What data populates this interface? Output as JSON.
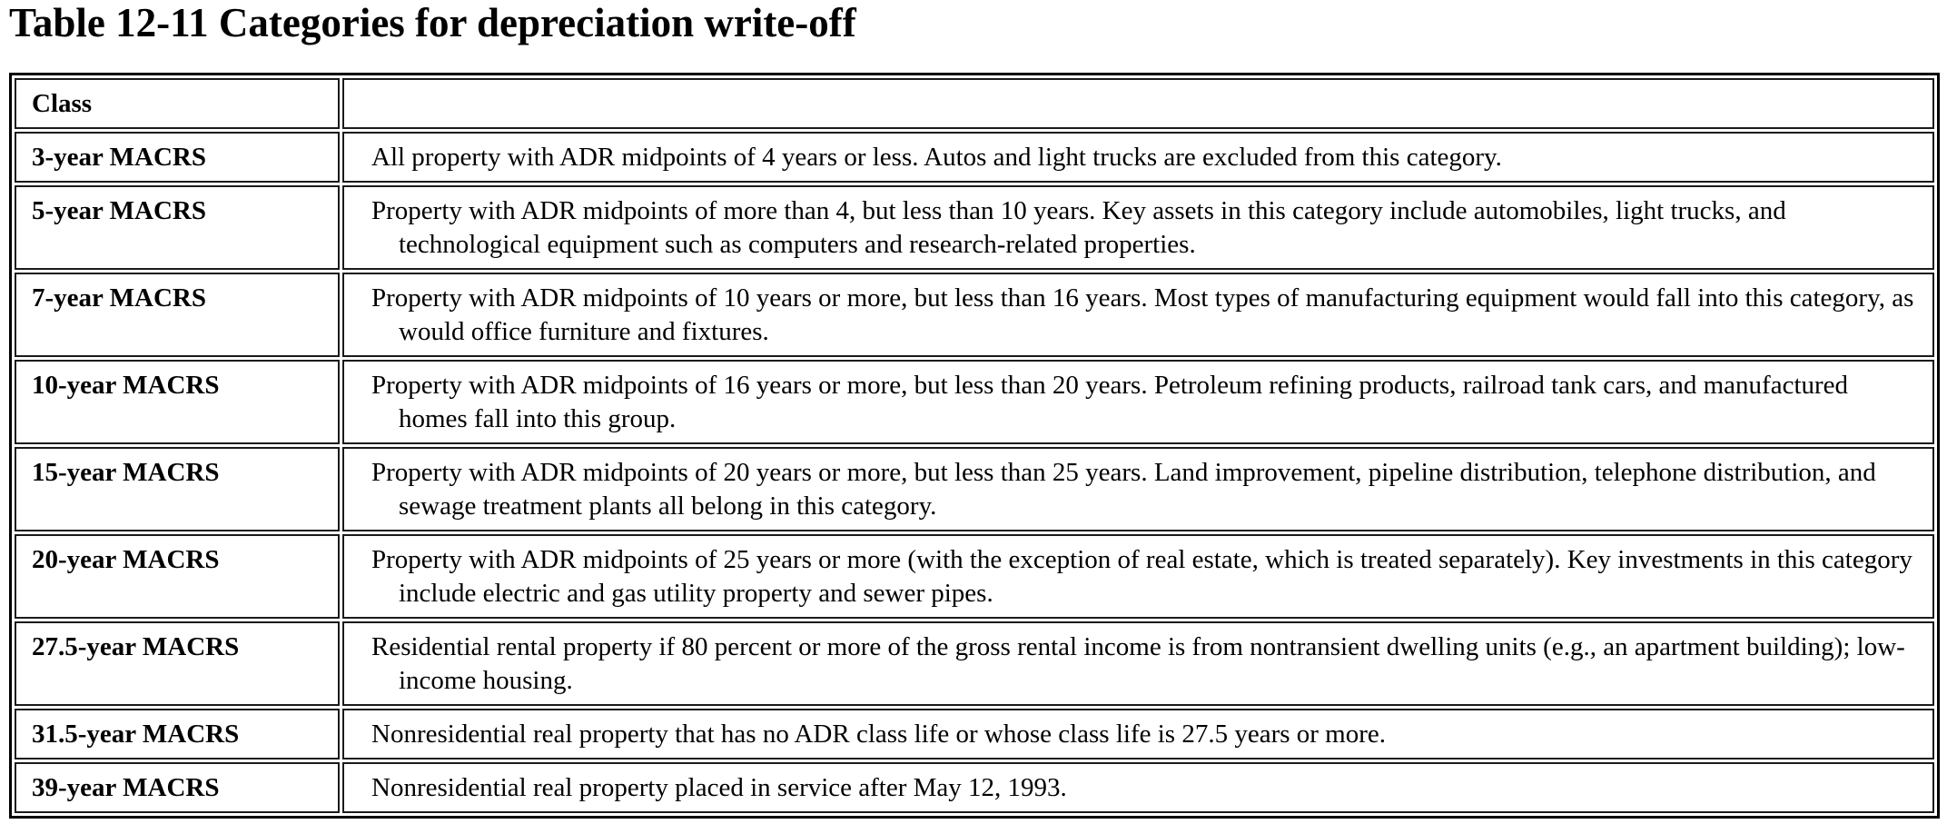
{
  "page": {
    "title": "Table 12-11 Categories for depreciation write-off"
  },
  "table": {
    "header": {
      "class_label": "Class",
      "description_label": ""
    },
    "rows": [
      {
        "class": "3-year MACRS",
        "description": "All property with ADR midpoints of 4 years or less. Autos and light trucks are excluded from this category."
      },
      {
        "class": "5-year MACRS",
        "description": "Property with ADR midpoints of more than 4, but less than 10 years. Key assets in this category include automobiles, light trucks, and technological equipment such as computers and research-related properties."
      },
      {
        "class": "7-year MACRS",
        "description": "Property with ADR midpoints of 10 years or more, but less than 16 years. Most types of manufacturing equipment would fall into this category, as would office furniture and fixtures."
      },
      {
        "class": "10-year MACRS",
        "description": "Property with ADR midpoints of 16 years or more, but less than 20 years. Petroleum refining products, railroad tank cars, and manufactured homes fall into this group."
      },
      {
        "class": "15-year MACRS",
        "description": "Property with ADR midpoints of 20 years or more, but less than 25 years. Land improvement, pipeline distribution, telephone distribution, and sewage treatment plants all belong in this category."
      },
      {
        "class": "20-year MACRS",
        "description": "Property with ADR midpoints of 25 years or more (with the exception of real estate, which is treated separately). Key investments in this category include electric and gas utility property and sewer pipes."
      },
      {
        "class": "27.5-year MACRS",
        "description": "Residential rental property if 80 percent or more of the gross rental income is from nontransient dwelling units (e.g., an apartment building); low-income housing."
      },
      {
        "class": "31.5-year MACRS",
        "description": "Nonresidential real property that has no ADR class life or whose class life is 27.5 years or more."
      },
      {
        "class": "39-year MACRS",
        "description": "Nonresidential real property placed in service after May 12, 1993."
      }
    ]
  },
  "colors": {
    "text": "#000000",
    "border": "#000000",
    "background": "#ffffff"
  }
}
